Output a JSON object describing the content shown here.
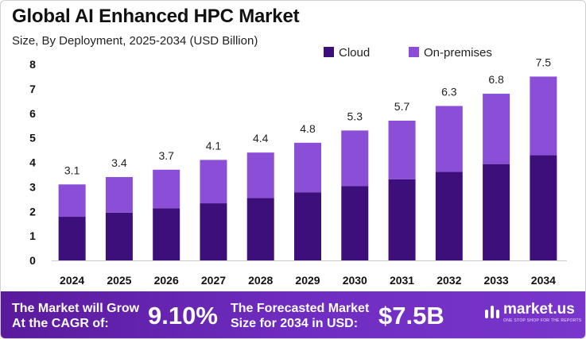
{
  "header": {
    "title": "Global AI Enhanced HPC Market",
    "subtitle": "Size, By Deployment, 2025-2034 (USD Billion)"
  },
  "colors": {
    "cloud": "#3d0f7a",
    "onprem": "#8a4fd6",
    "footer": "#6b28b8"
  },
  "chart_data": {
    "type": "bar",
    "stacked": true,
    "categories": [
      "2024",
      "2025",
      "2026",
      "2027",
      "2028",
      "2029",
      "2030",
      "2031",
      "2032",
      "2033",
      "2034"
    ],
    "series": [
      {
        "name": "Cloud",
        "values": [
          1.78,
          1.95,
          2.13,
          2.33,
          2.55,
          2.78,
          3.03,
          3.31,
          3.61,
          3.93,
          4.29
        ]
      },
      {
        "name": "On-premises",
        "values": [
          1.32,
          1.45,
          1.57,
          1.77,
          1.85,
          2.02,
          2.27,
          2.39,
          2.69,
          2.87,
          3.21
        ]
      }
    ],
    "totals": [
      3.1,
      3.4,
      3.7,
      4.1,
      4.4,
      4.8,
      5.3,
      5.7,
      6.3,
      6.8,
      7.5
    ],
    "total_labels": [
      "3.1",
      "3.4",
      "3.7",
      "4.1",
      "4.4",
      "4.8",
      "5.3",
      "5.7",
      "6.3",
      "6.8",
      "7.5"
    ],
    "yticks": [
      "0",
      "1",
      "2",
      "3",
      "4",
      "5",
      "6",
      "7",
      "8"
    ],
    "ylim": [
      0,
      8
    ],
    "grid": false,
    "legend_position": "top-right"
  },
  "footer": {
    "cagr_label_line1": "The Market will Grow",
    "cagr_label_line2": "At the CAGR of:",
    "cagr_value": "9.10%",
    "forecast_label_line1": "The Forecasted Market",
    "forecast_label_line2": "Size for 2034 in USD:",
    "forecast_value": "$7.5B",
    "brand_name": "market.us",
    "brand_tagline": "ONE STOP SHOP FOR THE REPORTS",
    "brand_icon": "market-us-logo-icon"
  }
}
